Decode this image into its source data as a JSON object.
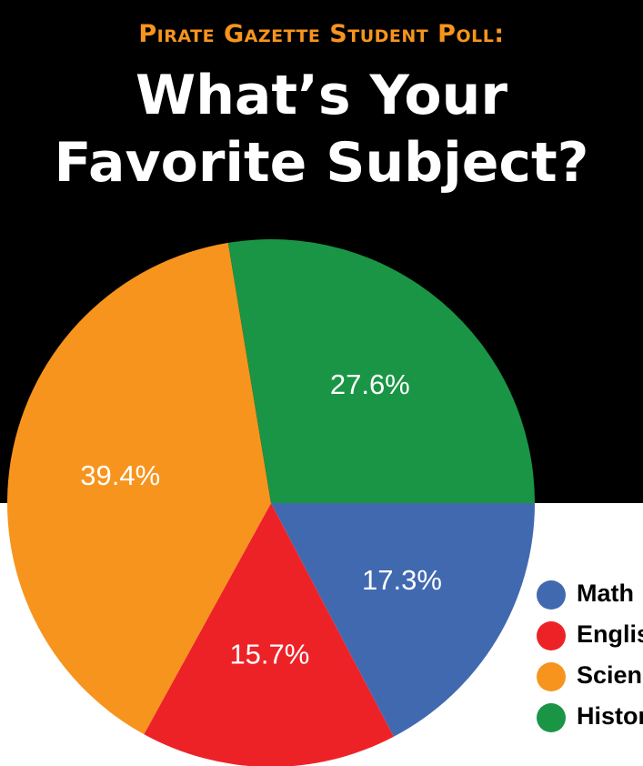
{
  "header": {
    "kicker": "Pirate Gazette Student Poll:",
    "title_line1": "What’s Your",
    "title_line2": "Favorite Subject?"
  },
  "chart_data": {
    "type": "pie",
    "title": "What’s Your Favorite Subject?",
    "subtitle": "Pirate Gazette Student Poll:",
    "slices": [
      {
        "label": "Math",
        "value": 17.3,
        "display": "17.3%",
        "color": "#4169b0"
      },
      {
        "label": "English",
        "value": 15.7,
        "display": "15.7%",
        "color": "#ed2227"
      },
      {
        "label": "Science",
        "value": 39.4,
        "display": "39.4%",
        "color": "#f7941d"
      },
      {
        "label": "History",
        "value": 27.6,
        "display": "27.6%",
        "color": "#1a9545"
      }
    ],
    "legend": {
      "placement": "bottom-right",
      "entries": [
        "Math",
        "English",
        "Science",
        "History"
      ]
    }
  }
}
